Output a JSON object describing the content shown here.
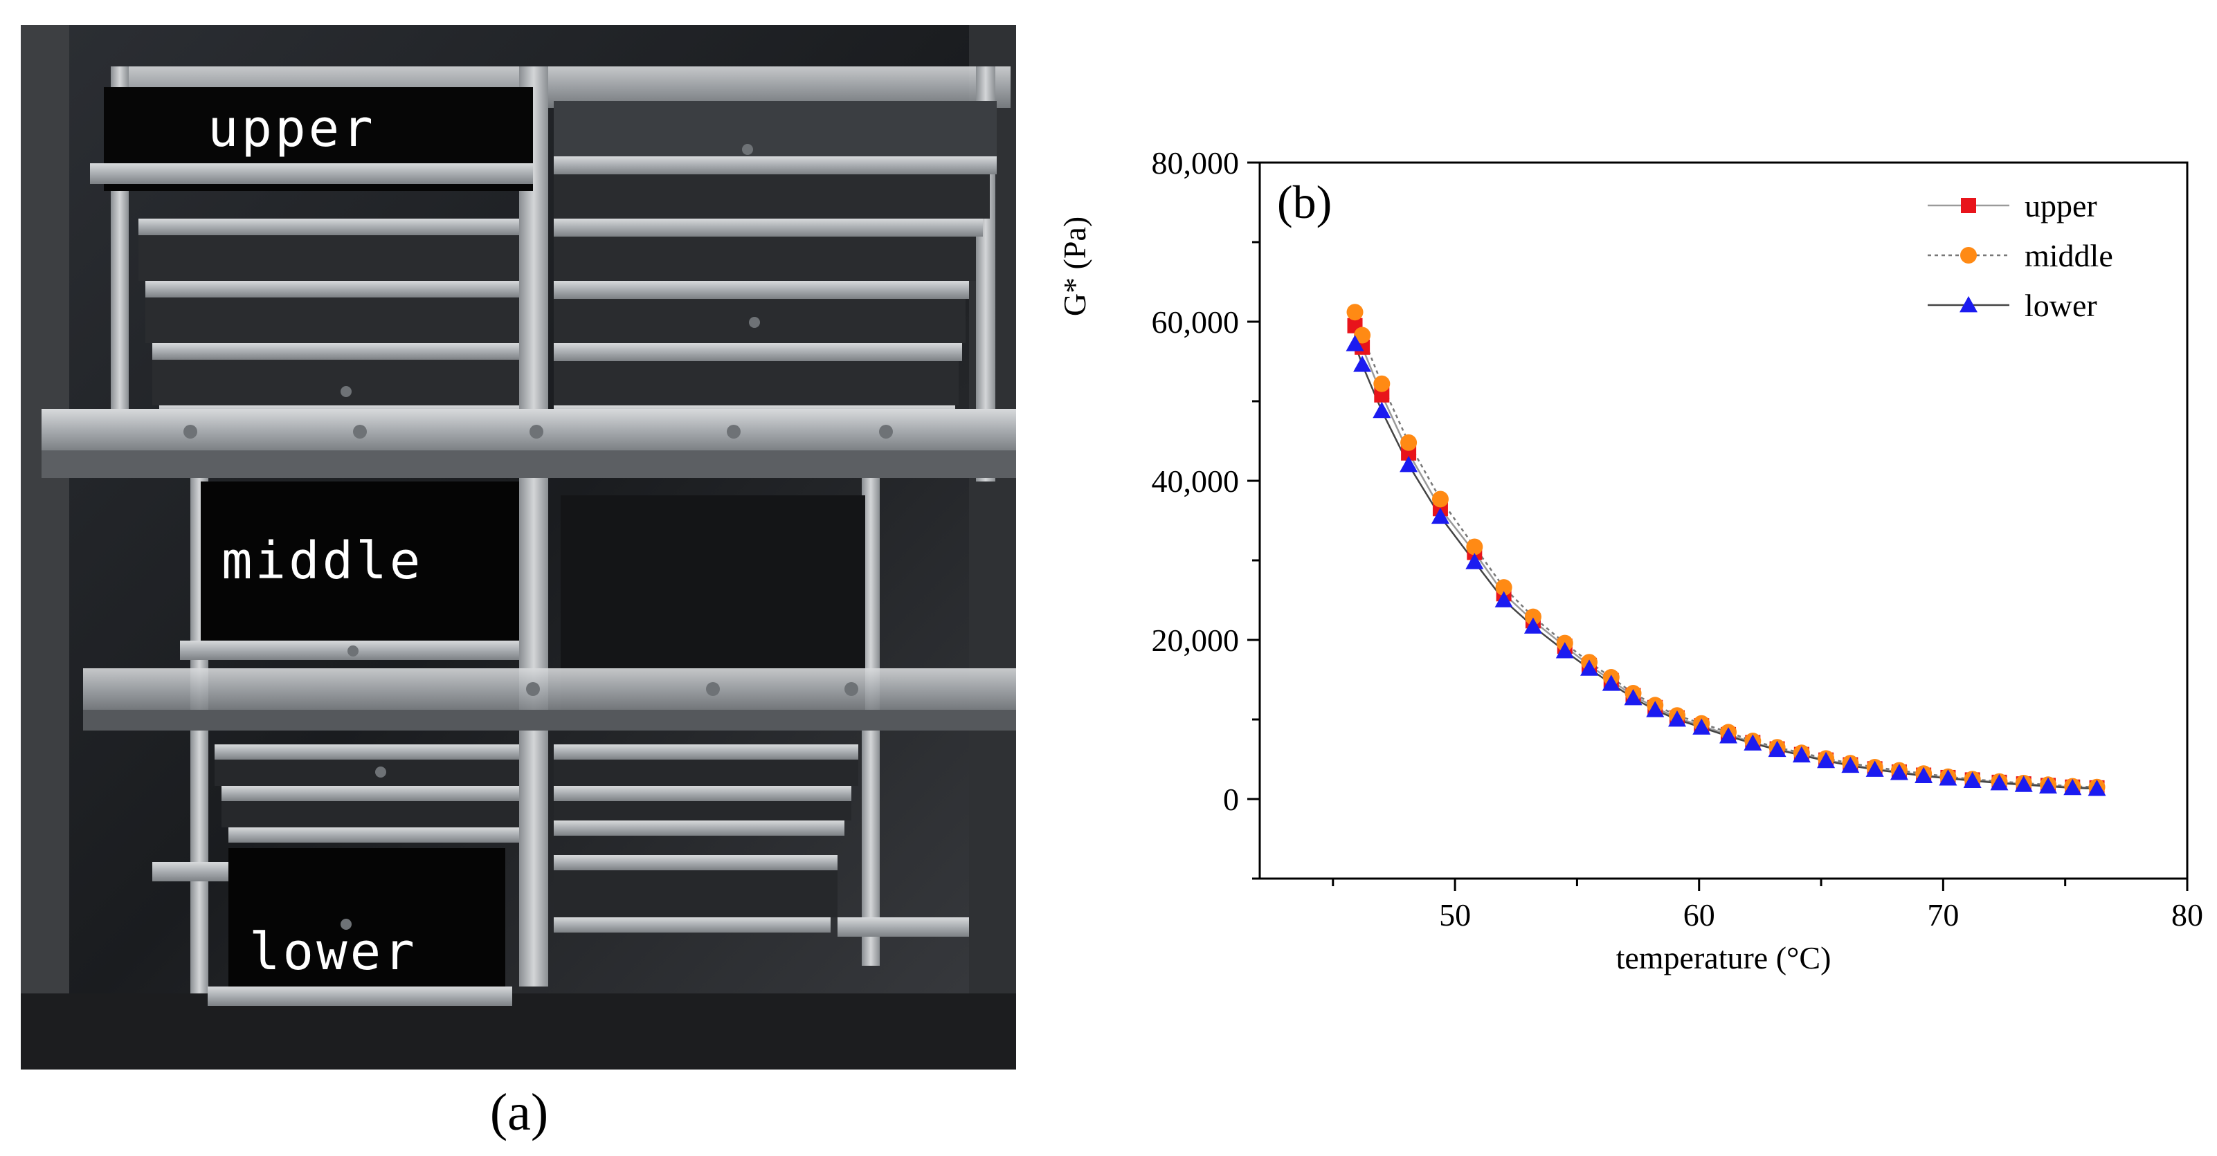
{
  "photo": {
    "labels": {
      "upper": "upper",
      "middle": "middle",
      "lower": "lower"
    },
    "caption": "(a)"
  },
  "chart_data": {
    "type": "scatter",
    "panel_label": "(b)",
    "title": "",
    "xlabel": "temperature (°C)",
    "ylabel": "G* (Pa)",
    "xlim": [
      42,
      80
    ],
    "ylim": [
      -10000,
      80000
    ],
    "xticks": [
      50,
      60,
      70,
      80
    ],
    "yticks": [
      0,
      20000,
      40000,
      60000,
      80000
    ],
    "ytick_labels": [
      "0",
      "20,000",
      "40,000",
      "60,000",
      "80,000"
    ],
    "legend_position": "top-right",
    "series": [
      {
        "name": "upper",
        "color": "#e8141b",
        "marker": "square",
        "line": "solid",
        "line_color": "#9a9a9a",
        "x": [
          45.9,
          46.2,
          47.0,
          48.1,
          49.4,
          50.8,
          52.0,
          53.2,
          54.5,
          55.5,
          56.4,
          57.3,
          58.2,
          59.1,
          60.1,
          61.2,
          62.2,
          63.2,
          64.2,
          65.2,
          66.2,
          67.2,
          68.2,
          69.2,
          70.2,
          71.2,
          72.3,
          73.3,
          74.3,
          75.3,
          76.3
        ],
        "y": [
          59500,
          56800,
          50800,
          43500,
          36500,
          31000,
          25800,
          22400,
          19200,
          16800,
          14900,
          13000,
          11500,
          10200,
          9200,
          8100,
          7100,
          6300,
          5600,
          4900,
          4300,
          3800,
          3400,
          3000,
          2700,
          2400,
          2100,
          1900,
          1700,
          1500,
          1400
        ]
      },
      {
        "name": "middle",
        "color": "#ff8a14",
        "marker": "circle",
        "line": "dotted",
        "line_color": "#777777",
        "x": [
          45.9,
          46.2,
          47.0,
          48.1,
          49.4,
          50.8,
          52.0,
          53.2,
          54.5,
          55.5,
          56.4,
          57.3,
          58.2,
          59.1,
          60.1,
          61.2,
          62.2,
          63.2,
          64.2,
          65.2,
          66.2,
          67.2,
          68.2,
          69.2,
          70.2,
          71.2,
          72.3,
          73.3,
          74.3,
          75.3,
          76.3
        ],
        "y": [
          61200,
          58300,
          52200,
          44800,
          37700,
          31700,
          26600,
          22900,
          19600,
          17200,
          15300,
          13300,
          11800,
          10500,
          9500,
          8400,
          7300,
          6500,
          5800,
          5100,
          4500,
          4000,
          3600,
          3200,
          2800,
          2500,
          2200,
          2000,
          1800,
          1600,
          1500
        ]
      },
      {
        "name": "lower",
        "color": "#1b1bf0",
        "marker": "triangle",
        "line": "solid",
        "line_color": "#444444",
        "x": [
          45.9,
          46.2,
          47.0,
          48.1,
          49.4,
          50.8,
          52.0,
          53.2,
          54.5,
          55.5,
          56.4,
          57.3,
          58.2,
          59.1,
          60.1,
          61.2,
          62.2,
          63.2,
          64.2,
          65.2,
          66.2,
          67.2,
          68.2,
          69.2,
          70.2,
          71.2,
          72.3,
          73.3,
          74.3,
          75.3,
          76.3
        ],
        "y": [
          57200,
          54600,
          48800,
          42000,
          35500,
          29800,
          25000,
          21700,
          18600,
          16400,
          14500,
          12700,
          11200,
          10000,
          9000,
          7900,
          7000,
          6200,
          5500,
          4800,
          4200,
          3700,
          3300,
          2900,
          2600,
          2300,
          2000,
          1800,
          1600,
          1400,
          1300
        ]
      }
    ]
  }
}
